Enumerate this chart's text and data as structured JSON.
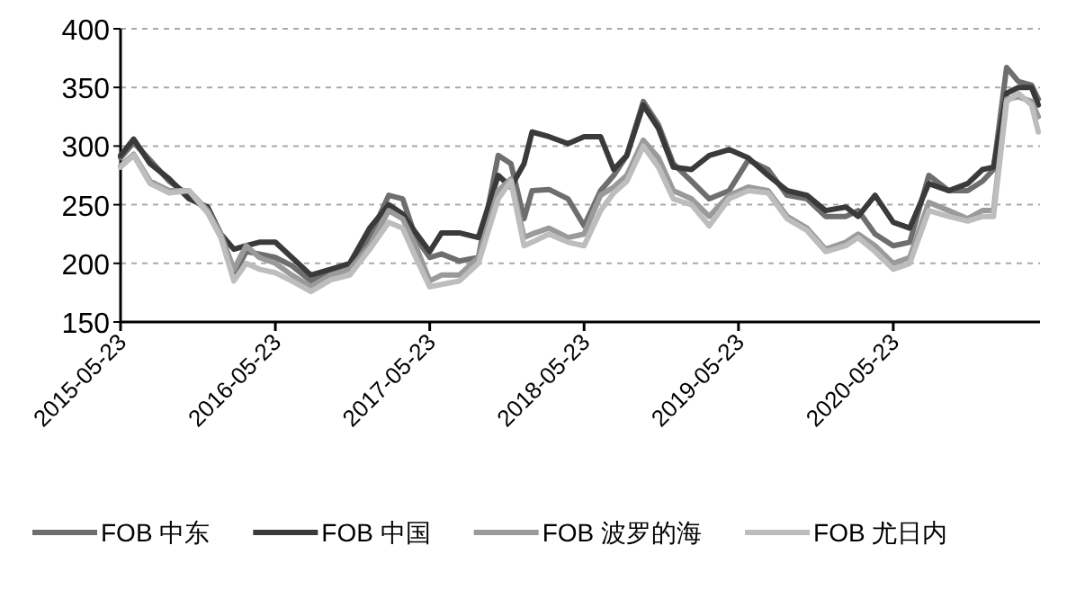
{
  "chart_data": {
    "type": "line",
    "x": [
      "2015-05-23",
      "2015-06-23",
      "2015-08-01",
      "2015-09-15",
      "2015-11-01",
      "2015-12-15",
      "2016-01-15",
      "2016-02-15",
      "2016-03-15",
      "2016-04-15",
      "2016-05-23",
      "2016-07-01",
      "2016-08-15",
      "2016-10-01",
      "2016-11-15",
      "2017-01-01",
      "2017-02-15",
      "2017-03-20",
      "2017-04-20",
      "2017-05-23",
      "2017-06-20",
      "2017-08-01",
      "2017-09-15",
      "2017-11-01",
      "2017-12-01",
      "2018-01-01",
      "2018-01-20",
      "2018-03-01",
      "2018-04-15",
      "2018-05-23",
      "2018-07-01",
      "2018-08-01",
      "2018-09-01",
      "2018-10-10",
      "2018-11-15",
      "2018-12-20",
      "2019-02-01",
      "2019-03-15",
      "2019-05-01",
      "2019-06-15",
      "2019-08-01",
      "2019-09-15",
      "2019-11-01",
      "2019-12-15",
      "2020-02-01",
      "2020-03-01",
      "2020-04-10",
      "2020-05-23",
      "2020-07-01",
      "2020-08-15",
      "2020-10-01",
      "2020-11-15",
      "2020-12-20",
      "2021-01-15",
      "2021-02-15",
      "2021-03-15",
      "2021-04-15",
      "2021-05-01"
    ],
    "series": [
      {
        "name": "FOB 中东",
        "color": "#6e6e6e",
        "values": [
          290,
          303,
          288,
          270,
          258,
          245,
          225,
          190,
          210,
          208,
          205,
          198,
          185,
          193,
          198,
          222,
          258,
          255,
          222,
          205,
          208,
          202,
          205,
          292,
          285,
          238,
          262,
          263,
          255,
          232,
          262,
          275,
          292,
          338,
          318,
          285,
          270,
          255,
          262,
          288,
          280,
          258,
          255,
          240,
          240,
          245,
          225,
          215,
          218,
          275,
          262,
          262,
          270,
          280,
          367,
          355,
          352,
          340
        ]
      },
      {
        "name": "FOB 中国",
        "color": "#3a3a3a",
        "values": [
          292,
          306,
          285,
          272,
          255,
          248,
          225,
          212,
          215,
          218,
          218,
          205,
          190,
          195,
          200,
          230,
          250,
          242,
          226,
          210,
          226,
          226,
          222,
          275,
          265,
          285,
          312,
          308,
          302,
          308,
          308,
          280,
          292,
          335,
          315,
          282,
          280,
          292,
          297,
          290,
          275,
          262,
          258,
          245,
          248,
          240,
          258,
          235,
          230,
          268,
          262,
          268,
          280,
          282,
          345,
          350,
          350,
          335
        ]
      },
      {
        "name": "FOB 波罗的海",
        "color": "#9a9a9a",
        "values": [
          283,
          293,
          270,
          262,
          262,
          245,
          225,
          195,
          215,
          205,
          200,
          190,
          180,
          190,
          195,
          215,
          245,
          238,
          215,
          185,
          190,
          190,
          205,
          262,
          272,
          222,
          225,
          230,
          222,
          225,
          258,
          265,
          275,
          305,
          290,
          262,
          255,
          240,
          258,
          265,
          262,
          240,
          230,
          212,
          218,
          225,
          215,
          200,
          205,
          252,
          245,
          238,
          245,
          245,
          340,
          342,
          338,
          325
        ]
      },
      {
        "name": "FOB 尤日内",
        "color": "#bdbdbd",
        "values": [
          282,
          292,
          268,
          260,
          262,
          243,
          222,
          185,
          200,
          195,
          192,
          185,
          176,
          186,
          190,
          212,
          235,
          230,
          205,
          180,
          182,
          185,
          200,
          255,
          270,
          215,
          218,
          225,
          218,
          215,
          245,
          260,
          270,
          300,
          282,
          255,
          250,
          232,
          255,
          262,
          260,
          238,
          228,
          210,
          215,
          222,
          210,
          195,
          200,
          245,
          240,
          236,
          240,
          240,
          338,
          345,
          335,
          312
        ]
      }
    ],
    "xlim": [
      "2015-05-23",
      "2021-05-05"
    ],
    "xticks": [
      "2015-05-23",
      "2016-05-23",
      "2017-05-23",
      "2018-05-23",
      "2019-05-23",
      "2020-05-23"
    ],
    "ylim": [
      150,
      400
    ],
    "yticks": [
      150,
      200,
      250,
      300,
      350,
      400
    ],
    "grid": "y",
    "legend": "bottom"
  }
}
